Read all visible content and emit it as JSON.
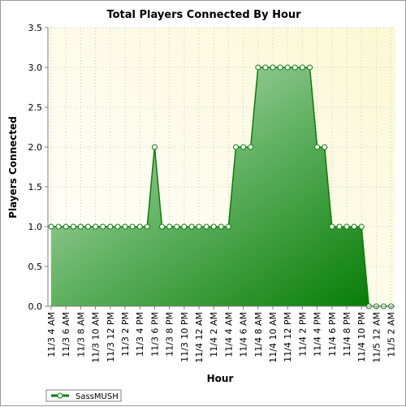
{
  "chart_data": {
    "type": "area",
    "title": "Total Players Connected By Hour",
    "xlabel": "Hour",
    "ylabel": "Players Connected",
    "ylim": [
      0,
      3.5
    ],
    "yticks": [
      "0.0",
      "0.5",
      "1.0",
      "1.5",
      "2.0",
      "2.5",
      "3.0",
      "3.5"
    ],
    "xtick_labels": [
      "11/3 4 AM",
      "11/3 6 AM",
      "11/3 8 AM",
      "11/3 10 AM",
      "11/3 12 PM",
      "11/3 2 PM",
      "11/3 4 PM",
      "11/3 6 PM",
      "11/3 8 PM",
      "11/3 10 PM",
      "11/4 12 AM",
      "11/4 2 AM",
      "11/4 4 AM",
      "11/4 6 AM",
      "11/4 8 AM",
      "11/4 10 AM",
      "11/4 12 PM",
      "11/4 2 PM",
      "11/4 4 PM",
      "11/4 6 PM",
      "11/4 8 PM",
      "11/4 10 PM",
      "11/5 12 AM",
      "11/5 2 AM"
    ],
    "x": [
      "11/3 4 AM",
      "11/3 5 AM",
      "11/3 6 AM",
      "11/3 7 AM",
      "11/3 8 AM",
      "11/3 9 AM",
      "11/3 10 AM",
      "11/3 11 AM",
      "11/3 12 PM",
      "11/3 1 PM",
      "11/3 2 PM",
      "11/3 3 PM",
      "11/3 4 PM",
      "11/3 5 PM",
      "11/3 6 PM",
      "11/3 7 PM",
      "11/3 8 PM",
      "11/3 9 PM",
      "11/3 10 PM",
      "11/3 11 PM",
      "11/4 12 AM",
      "11/4 1 AM",
      "11/4 2 AM",
      "11/4 3 AM",
      "11/4 4 AM",
      "11/4 5 AM",
      "11/4 6 AM",
      "11/4 7 AM",
      "11/4 8 AM",
      "11/4 9 AM",
      "11/4 10 AM",
      "11/4 11 AM",
      "11/4 12 PM",
      "11/4 1 PM",
      "11/4 2 PM",
      "11/4 3 PM",
      "11/4 4 PM",
      "11/4 5 PM",
      "11/4 6 PM",
      "11/4 7 PM",
      "11/4 8 PM",
      "11/4 9 PM",
      "11/4 10 PM",
      "11/4 11 PM",
      "11/5 12 AM",
      "11/5 1 AM",
      "11/5 2 AM"
    ],
    "series": [
      {
        "name": "SassMUSH",
        "color": "#0a7d0a",
        "values": [
          1,
          1,
          1,
          1,
          1,
          1,
          1,
          1,
          1,
          1,
          1,
          1,
          1,
          1,
          2,
          1,
          1,
          1,
          1,
          1,
          1,
          1,
          1,
          1,
          1,
          2,
          2,
          2,
          3,
          3,
          3,
          3,
          3,
          3,
          3,
          3,
          2,
          2,
          1,
          1,
          1,
          1,
          1,
          0,
          0,
          0,
          0
        ]
      }
    ],
    "grid": true,
    "legend": "bottom-left",
    "plot_background": [
      "#ffffff",
      "#fbf8d3"
    ]
  }
}
